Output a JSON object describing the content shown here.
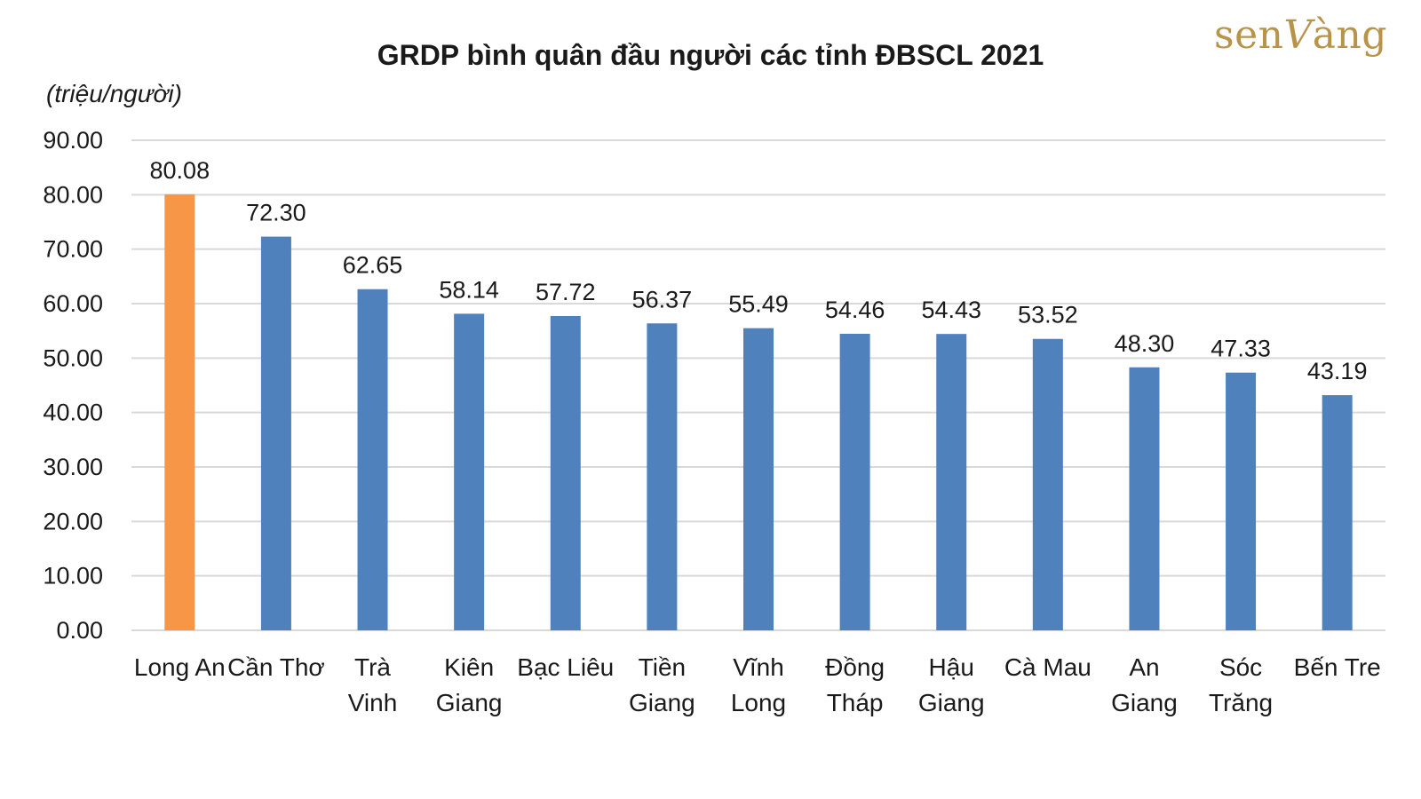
{
  "chart_data": {
    "type": "bar",
    "title": "GRDP bình quân đầu người các tỉnh ĐBSCL 2021",
    "ylabel": "(triệu/người)",
    "xlabel": "",
    "ylim": [
      0,
      90
    ],
    "yticks": [
      "0.00",
      "10.00",
      "20.00",
      "30.00",
      "40.00",
      "50.00",
      "60.00",
      "70.00",
      "80.00",
      "90.00"
    ],
    "grid": true,
    "categories": [
      [
        "Long An"
      ],
      [
        "Cần Thơ"
      ],
      [
        "Trà",
        "Vinh"
      ],
      [
        "Kiên",
        "Giang"
      ],
      [
        "Bạc Liêu"
      ],
      [
        "Tiền",
        "Giang"
      ],
      [
        "Vĩnh",
        "Long"
      ],
      [
        "Đồng",
        "Tháp"
      ],
      [
        "Hậu",
        "Giang"
      ],
      [
        "Cà Mau"
      ],
      [
        "An",
        "Giang"
      ],
      [
        "Sóc",
        "Trăng"
      ],
      [
        "Bến Tre"
      ]
    ],
    "values": [
      80.08,
      72.3,
      62.65,
      58.14,
      57.72,
      56.37,
      55.49,
      54.46,
      54.43,
      53.52,
      48.3,
      47.33,
      43.19
    ],
    "data_labels": [
      "80.08",
      "72.30",
      "62.65",
      "58.14",
      "57.72",
      "56.37",
      "55.49",
      "54.46",
      "54.43",
      "53.52",
      "48.30",
      "47.33",
      "43.19"
    ],
    "bar_colors": [
      "#F79646",
      "#4F81BD",
      "#4F81BD",
      "#4F81BD",
      "#4F81BD",
      "#4F81BD",
      "#4F81BD",
      "#4F81BD",
      "#4F81BD",
      "#4F81BD",
      "#4F81BD",
      "#4F81BD",
      "#4F81BD"
    ],
    "gridline_color": "#d9d9d9"
  },
  "logo": {
    "text": "senvàng"
  }
}
